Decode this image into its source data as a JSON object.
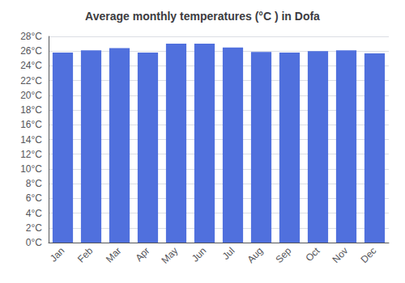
{
  "chart_data": {
    "type": "bar",
    "title": "Average monthly temperatures (°C ) in Dofa",
    "categories": [
      "Jan",
      "Feb",
      "Mar",
      "Apr",
      "May",
      "Jun",
      "Jul",
      "Aug",
      "Sep",
      "Oct",
      "Nov",
      "Dec"
    ],
    "values": [
      25.8,
      26.1,
      26.4,
      25.8,
      27.0,
      27.0,
      26.5,
      25.9,
      25.8,
      26.0,
      26.1,
      25.7
    ],
    "ylim": [
      0,
      28
    ],
    "yticks": [
      {
        "value": 0,
        "label": "0°C"
      },
      {
        "value": 2,
        "label": "2°C"
      },
      {
        "value": 4,
        "label": "4°C"
      },
      {
        "value": 6,
        "label": "6°C"
      },
      {
        "value": 8,
        "label": "8°C"
      },
      {
        "value": 10,
        "label": "10°C"
      },
      {
        "value": 12,
        "label": "12°C"
      },
      {
        "value": 14,
        "label": "14°C"
      },
      {
        "value": 16,
        "label": "16°C"
      },
      {
        "value": 18,
        "label": "18°C"
      },
      {
        "value": 20,
        "label": "20°C"
      },
      {
        "value": 22,
        "label": "22°C"
      },
      {
        "value": 24,
        "label": "24°C"
      },
      {
        "value": 26,
        "label": "26°C"
      },
      {
        "value": 28,
        "label": "28°C"
      }
    ],
    "grid": true
  }
}
